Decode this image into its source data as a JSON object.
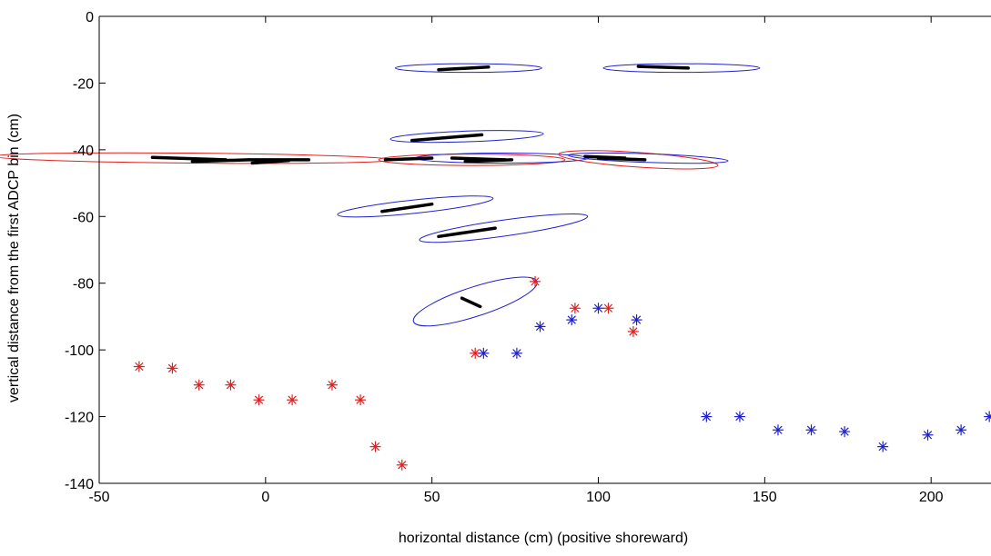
{
  "chart_data": {
    "type": "scatter",
    "title": "",
    "xlabel": "horizontal distance (cm) (positive shoreward)",
    "ylabel": "vertical distance from the first ADCP bin (cm)",
    "xlim": [
      -50,
      218
    ],
    "ylim": [
      -140,
      0
    ],
    "xticks": [
      -50,
      0,
      50,
      100,
      150,
      200
    ],
    "yticks": [
      0,
      -20,
      -40,
      -60,
      -80,
      -100,
      -120,
      -140
    ],
    "grid": false,
    "legend": "none",
    "colors": {
      "red": "#e02020",
      "blue": "#2020d0",
      "line": "#000000",
      "axis": "#000000"
    },
    "series": [
      {
        "marker": "asterisk",
        "color": "red",
        "points": [
          {
            "x": -38,
            "y": -105
          },
          {
            "x": -28,
            "y": -105.5
          },
          {
            "x": -20,
            "y": -110.5
          },
          {
            "x": -10.5,
            "y": -110.5
          },
          {
            "x": -2,
            "y": -115
          },
          {
            "x": 8,
            "y": -115
          },
          {
            "x": 20,
            "y": -110.5
          },
          {
            "x": 28.5,
            "y": -115
          },
          {
            "x": 33,
            "y": -129
          },
          {
            "x": 41,
            "y": -134.5
          },
          {
            "x": 63,
            "y": -101
          },
          {
            "x": 81,
            "y": -79.5
          },
          {
            "x": 93,
            "y": -87.5
          },
          {
            "x": 103,
            "y": -87.5
          },
          {
            "x": 110.5,
            "y": -94.5
          }
        ]
      },
      {
        "marker": "asterisk",
        "color": "blue",
        "points": [
          {
            "x": 65.5,
            "y": -101
          },
          {
            "x": 75.5,
            "y": -101
          },
          {
            "x": 82.5,
            "y": -93
          },
          {
            "x": 92,
            "y": -91
          },
          {
            "x": 100,
            "y": -87.5
          },
          {
            "x": 111.5,
            "y": -91
          },
          {
            "x": 132.5,
            "y": -120
          },
          {
            "x": 142.5,
            "y": -120
          },
          {
            "x": 154,
            "y": -124
          },
          {
            "x": 164,
            "y": -124
          },
          {
            "x": 174,
            "y": -124.5
          },
          {
            "x": 185.5,
            "y": -129
          },
          {
            "x": 199,
            "y": -125.5
          },
          {
            "x": 209,
            "y": -124
          },
          {
            "x": 217.5,
            "y": -120
          }
        ]
      }
    ],
    "ellipses": [
      {
        "color": "blue",
        "cx": 61,
        "cy": -15.5,
        "rx": 22,
        "ry": 1.3,
        "angle": 0
      },
      {
        "color": "blue",
        "cx": 125,
        "cy": -15.5,
        "rx": 23.5,
        "ry": 1.3,
        "angle": 0
      },
      {
        "color": "blue",
        "cx": 60.5,
        "cy": -36,
        "rx": 23,
        "ry": 1.6,
        "angle": 2
      },
      {
        "color": "red",
        "cx": -22,
        "cy": -42.5,
        "rx": 60,
        "ry": 1.5,
        "angle": -0.5
      },
      {
        "color": "red",
        "cx": 62,
        "cy": -43,
        "rx": 28,
        "ry": 1.7,
        "angle": 0
      },
      {
        "color": "blue",
        "cx": 71,
        "cy": -42.5,
        "rx": 26,
        "ry": 1.5,
        "angle": 0
      },
      {
        "color": "red",
        "cx": 112,
        "cy": -43,
        "rx": 24,
        "ry": 2.2,
        "angle": -4
      },
      {
        "color": "blue",
        "cx": 115,
        "cy": -42.5,
        "rx": 24,
        "ry": 1.3,
        "angle": -2
      },
      {
        "color": "blue",
        "cx": 45,
        "cy": -57,
        "rx": 23.5,
        "ry": 2,
        "angle": 6
      },
      {
        "color": "blue",
        "cx": 71.5,
        "cy": -63.5,
        "rx": 25.5,
        "ry": 2.4,
        "angle": 8
      },
      {
        "color": "blue",
        "cx": 63,
        "cy": -85.5,
        "rx": 19.5,
        "ry": 4.4,
        "angle": 18
      }
    ],
    "segments": [
      {
        "x1": 52,
        "y1": -16,
        "x2": 67,
        "y2": -15.2
      },
      {
        "x1": 112,
        "y1": -15,
        "x2": 127,
        "y2": -15.5
      },
      {
        "x1": 44,
        "y1": -37.2,
        "x2": 65,
        "y2": -35.5
      },
      {
        "x1": -34,
        "y1": -42.3,
        "x2": -12,
        "y2": -43
      },
      {
        "x1": -22,
        "y1": -43.5,
        "x2": -5,
        "y2": -43
      },
      {
        "x1": -5,
        "y1": -43,
        "x2": 13,
        "y2": -43
      },
      {
        "x1": -4,
        "y1": -44,
        "x2": 7,
        "y2": -43.2
      },
      {
        "x1": 36,
        "y1": -43,
        "x2": 50,
        "y2": -42.5
      },
      {
        "x1": 56,
        "y1": -42.5,
        "x2": 72,
        "y2": -43
      },
      {
        "x1": 60,
        "y1": -43.5,
        "x2": 74,
        "y2": -43
      },
      {
        "x1": 96,
        "y1": -42,
        "x2": 108,
        "y2": -42.5
      },
      {
        "x1": 100,
        "y1": -42.5,
        "x2": 114,
        "y2": -43
      },
      {
        "x1": 35,
        "y1": -58.5,
        "x2": 50,
        "y2": -56.3
      },
      {
        "x1": 52,
        "y1": -66,
        "x2": 69,
        "y2": -63.5
      },
      {
        "x1": 59,
        "y1": -84.5,
        "x2": 64.5,
        "y2": -87
      }
    ]
  }
}
